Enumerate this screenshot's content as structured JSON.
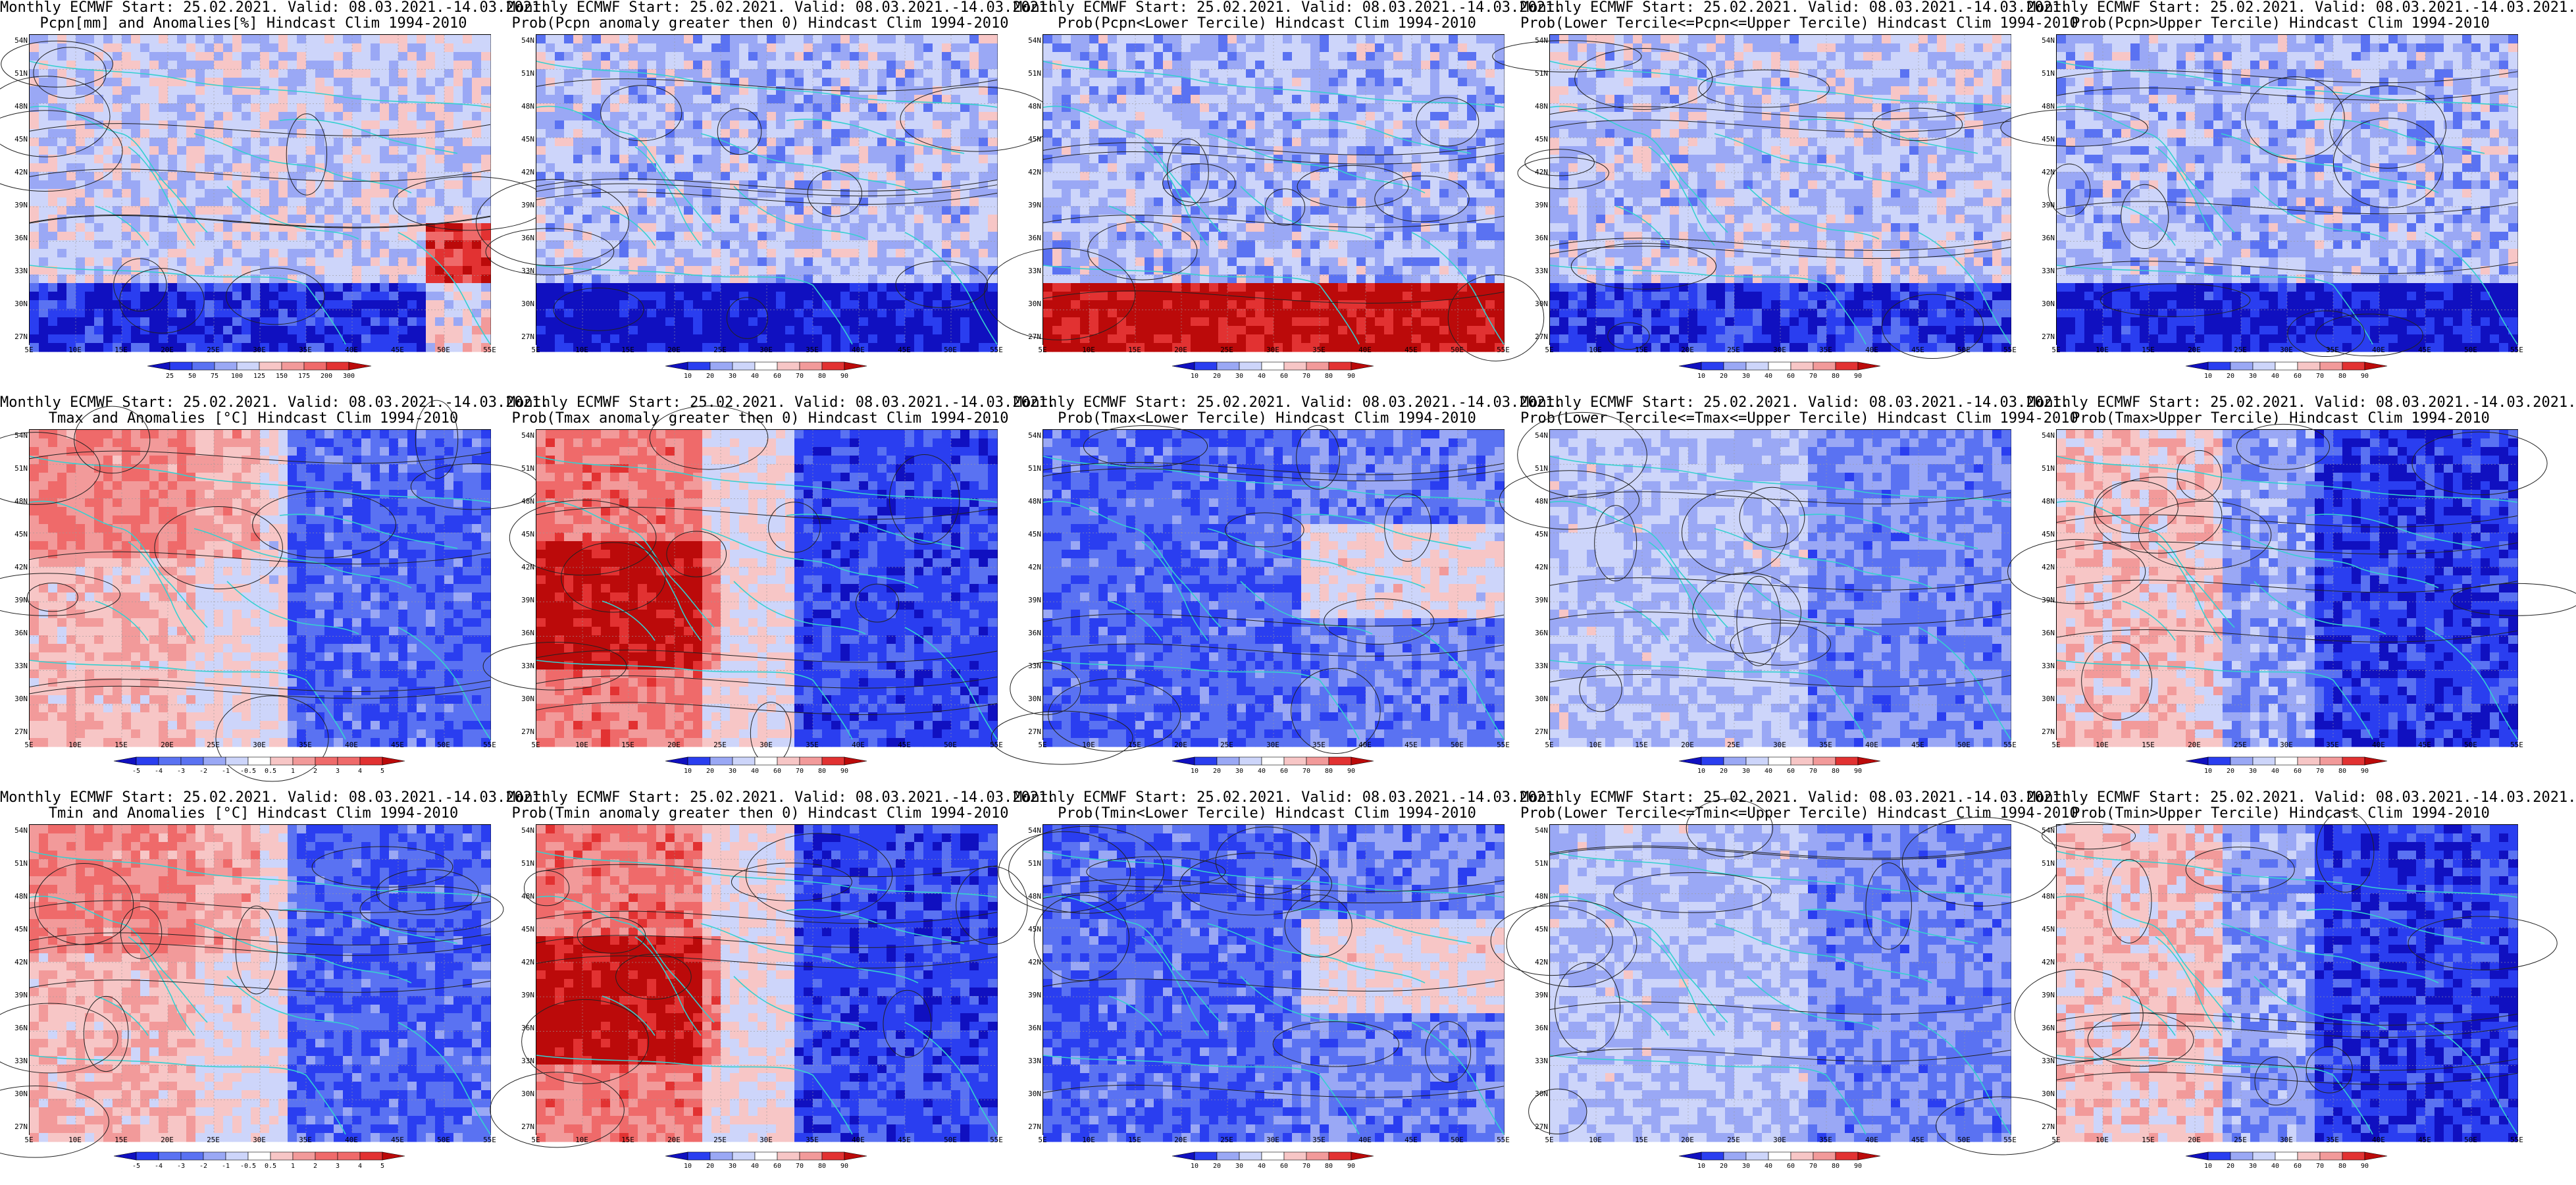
{
  "axes": {
    "x_ticks": [
      "5E",
      "10E",
      "15E",
      "20E",
      "25E",
      "30E",
      "35E",
      "40E",
      "45E",
      "50E",
      "55E"
    ],
    "y_ticks": [
      "54N",
      "51N",
      "48N",
      "45N",
      "42N",
      "39N",
      "36N",
      "33N",
      "30N",
      "27N"
    ]
  },
  "colors": {
    "deep_blue": "#1010c0",
    "blue": "#2a3ef0",
    "mid_blue": "#5a72f2",
    "light_blue": "#9aa8f5",
    "pale_blue": "#cdd5fa",
    "white": "#ffffff",
    "pale_red": "#f7c6c6",
    "light_red": "#f29a9a",
    "mid_red": "#ef6a6a",
    "red": "#e23232",
    "deep_red": "#bb0a0a",
    "coast": "#35d0d0",
    "contour": "#222222"
  },
  "panels": [
    {
      "id": "r1c1",
      "title_line1": "Monthly ECMWF Start: 25.02.2021. Valid: 08.03.2021.-14.03.2021.",
      "title_line2": "Pcpn[mm] and Anomalies[%] Hindcast Clim 1994-2010",
      "colorbar_ticks": [
        "25",
        "50",
        "75",
        "100",
        "125",
        "150",
        "175",
        "200",
        "300"
      ],
      "field_kind": "precip_anom",
      "variable": "Pcpn"
    },
    {
      "id": "r1c2",
      "title_line1": "Monthly ECMWF Start: 25.02.2021. Valid: 08.03.2021.-14.03.2021.",
      "title_line2": "Prob(Pcpn anomaly greater then 0) Hindcast Clim 1994-2010",
      "colorbar_ticks": [
        "10",
        "20",
        "30",
        "40",
        "60",
        "70",
        "80",
        "90"
      ],
      "field_kind": "precip_pos",
      "variable": "Pcpn"
    },
    {
      "id": "r1c3",
      "title_line1": "Monthly ECMWF Start: 25.02.2021. Valid: 08.03.2021.-14.03.2021.",
      "title_line2": "Prob(Pcpn<Lower Tercile) Hindcast Clim 1994-2010",
      "colorbar_ticks": [
        "10",
        "20",
        "30",
        "40",
        "60",
        "70",
        "80",
        "90"
      ],
      "field_kind": "precip_lower",
      "variable": "Pcpn"
    },
    {
      "id": "r1c4",
      "title_line1": "Monthly ECMWF Start: 25.02.2021. Valid: 08.03.2021.-14.03.2021.",
      "title_line2": "Prob(Lower Tercile<=Pcpn<=Upper Tercile) Hindcast Clim 1994-2010",
      "colorbar_ticks": [
        "10",
        "20",
        "30",
        "40",
        "60",
        "70",
        "80",
        "90"
      ],
      "field_kind": "precip_mid",
      "variable": "Pcpn"
    },
    {
      "id": "r1c5",
      "title_line1": "Monthly ECMWF Start: 25.02.2021. Valid: 08.03.2021.-14.03.2021.",
      "title_line2": "Prob(Pcpn>Upper Tercile) Hindcast Clim 1994-2010",
      "colorbar_ticks": [
        "10",
        "20",
        "30",
        "40",
        "60",
        "70",
        "80",
        "90"
      ],
      "field_kind": "precip_upper",
      "variable": "Pcpn"
    },
    {
      "id": "r2c1",
      "title_line1": "Monthly ECMWF Start: 25.02.2021. Valid: 08.03.2021.-14.03.2021.",
      "title_line2": "Tmax and Anomalies [°C] Hindcast Clim 1994-2010",
      "colorbar_ticks": [
        "-5",
        "-4",
        "-3",
        "-2",
        "-1",
        "-0.5",
        "0.5",
        "1",
        "2",
        "3",
        "4",
        "5"
      ],
      "field_kind": "temp_anom",
      "variable": "Tmax"
    },
    {
      "id": "r2c2",
      "title_line1": "Monthly ECMWF Start: 25.02.2021. Valid: 08.03.2021.-14.03.2021.",
      "title_line2": "Prob(Tmax anomaly greater then 0) Hindcast Clim 1994-2010",
      "colorbar_ticks": [
        "10",
        "20",
        "30",
        "40",
        "60",
        "70",
        "80",
        "90"
      ],
      "field_kind": "temp_pos",
      "variable": "Tmax"
    },
    {
      "id": "r2c3",
      "title_line1": "Monthly ECMWF Start: 25.02.2021. Valid: 08.03.2021.-14.03.2021.",
      "title_line2": "Prob(Tmax<Lower Tercile) Hindcast Clim 1994-2010",
      "colorbar_ticks": [
        "10",
        "20",
        "30",
        "40",
        "60",
        "70",
        "80",
        "90"
      ],
      "field_kind": "temp_lower",
      "variable": "Tmax"
    },
    {
      "id": "r2c4",
      "title_line1": "Monthly ECMWF Start: 25.02.2021. Valid: 08.03.2021.-14.03.2021.",
      "title_line2": "Prob(Lower Tercile<=Tmax<=Upper Tercile) Hindcast Clim 1994-2010",
      "colorbar_ticks": [
        "10",
        "20",
        "30",
        "40",
        "60",
        "70",
        "80",
        "90"
      ],
      "field_kind": "temp_mid",
      "variable": "Tmax"
    },
    {
      "id": "r2c5",
      "title_line1": "Monthly ECMWF Start: 25.02.2021. Valid: 08.03.2021.-14.03.2021.",
      "title_line2": "Prob(Tmax>Upper Tercile) Hindcast Clim 1994-2010",
      "colorbar_ticks": [
        "10",
        "20",
        "30",
        "40",
        "60",
        "70",
        "80",
        "90"
      ],
      "field_kind": "temp_upper",
      "variable": "Tmax"
    },
    {
      "id": "r3c1",
      "title_line1": "Monthly ECMWF Start: 25.02.2021. Valid: 08.03.2021.-14.03.2021.",
      "title_line2": "Tmin and Anomalies [°C] Hindcast Clim 1994-2010",
      "colorbar_ticks": [
        "-5",
        "-4",
        "-3",
        "-2",
        "-1",
        "-0.5",
        "0.5",
        "1",
        "2",
        "3",
        "4",
        "5"
      ],
      "field_kind": "temp_anom",
      "variable": "Tmin"
    },
    {
      "id": "r3c2",
      "title_line1": "Monthly ECMWF Start: 25.02.2021. Valid: 08.03.2021.-14.03.2021.",
      "title_line2": "Prob(Tmin anomaly greater then 0) Hindcast Clim 1994-2010",
      "colorbar_ticks": [
        "10",
        "20",
        "30",
        "40",
        "60",
        "70",
        "80",
        "90"
      ],
      "field_kind": "temp_pos",
      "variable": "Tmin"
    },
    {
      "id": "r3c3",
      "title_line1": "Monthly ECMWF Start: 25.02.2021. Valid: 08.03.2021.-14.03.2021.",
      "title_line2": "Prob(Tmin<Lower Tercile) Hindcast Clim 1994-2010",
      "colorbar_ticks": [
        "10",
        "20",
        "30",
        "40",
        "60",
        "70",
        "80",
        "90"
      ],
      "field_kind": "temp_lower",
      "variable": "Tmin"
    },
    {
      "id": "r3c4",
      "title_line1": "Monthly ECMWF Start: 25.02.2021. Valid: 08.03.2021.-14.03.2021.",
      "title_line2": "Prob(Lower Tercile<=Tmin<=Upper Tercile) Hindcast Clim 1994-2010",
      "colorbar_ticks": [
        "10",
        "20",
        "30",
        "40",
        "60",
        "70",
        "80",
        "90"
      ],
      "field_kind": "temp_mid",
      "variable": "Tmin"
    },
    {
      "id": "r3c5",
      "title_line1": "Monthly ECMWF Start: 25.02.2021. Valid: 08.03.2021.-14.03.2021.",
      "title_line2": "Prob(Tmin>Upper Tercile) Hindcast Clim 1994-2010",
      "colorbar_ticks": [
        "10",
        "20",
        "30",
        "40",
        "60",
        "70",
        "80",
        "90"
      ],
      "field_kind": "temp_upper",
      "variable": "Tmin"
    }
  ]
}
